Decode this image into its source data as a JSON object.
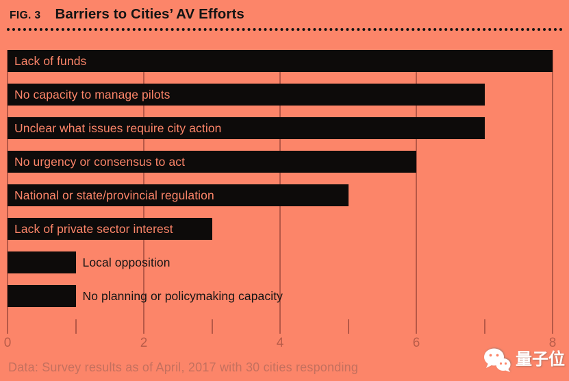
{
  "figure": {
    "fig_label": "FIG. 3",
    "title": "Barriers to Cities’ AV Efforts"
  },
  "chart_data": {
    "type": "bar",
    "orientation": "horizontal",
    "title": "Barriers to Cities’ AV Efforts",
    "categories": [
      "Lack of funds",
      "No capacity to manage pilots",
      "Unclear what issues require city action",
      "No urgency or consensus to act",
      "National or state/provincial regulation",
      "Lack of private sector interest",
      "Local opposition",
      "No planning or policymaking capacity"
    ],
    "values": [
      8,
      7,
      7,
      6,
      5,
      3,
      1,
      1
    ],
    "label_layout": [
      "inside",
      "inside",
      "inside",
      "inside",
      "inside",
      "inside",
      "outside",
      "outside"
    ],
    "xlabel": "",
    "ylabel": "",
    "xlim": [
      0,
      8
    ],
    "x_major_ticks": [
      0,
      2,
      4,
      6,
      8
    ],
    "x_minor_ticks": [
      1,
      3,
      5,
      7
    ],
    "grid": true,
    "legend": false
  },
  "footer": {
    "source_note": "Data: Survey results as of April, 2017 with 30 cities responding"
  },
  "watermark": {
    "text": "量子位",
    "icon": "wechat-icon"
  },
  "colors": {
    "background": "#FC8569",
    "bar": "#0D0B0A",
    "gridline": "#B65847",
    "label_inside": "#FC8569",
    "label_outside": "#141414",
    "tick_label": "#B85C49",
    "source_note": "#C4705E",
    "title": "#141414",
    "watermark": "#FFFFFF"
  }
}
